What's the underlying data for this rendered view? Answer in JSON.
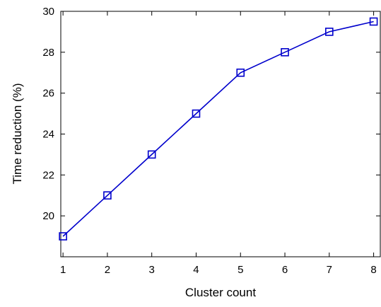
{
  "chart_data": {
    "type": "line",
    "title": "",
    "xlabel": "Cluster count",
    "ylabel": "Time reduction (%)",
    "x": [
      1,
      2,
      3,
      4,
      5,
      6,
      7,
      8
    ],
    "xlim": [
      0.95,
      8.15
    ],
    "ylim": [
      18,
      30
    ],
    "xticks": [
      1,
      2,
      3,
      4,
      5,
      6,
      7,
      8
    ],
    "yticks": [
      20,
      22,
      24,
      26,
      28,
      30
    ],
    "grid": false,
    "series": [
      {
        "values": [
          19,
          21,
          23,
          25,
          27,
          28,
          29,
          29.5
        ],
        "color": "#0000cc",
        "marker": "square"
      }
    ]
  }
}
